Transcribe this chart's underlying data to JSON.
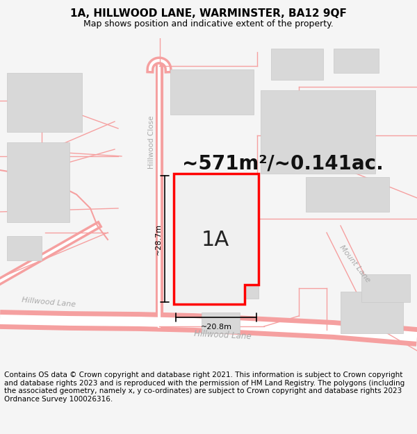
{
  "title_line1": "1A, HILLWOOD LANE, WARMINSTER, BA12 9QF",
  "title_line2": "Map shows position and indicative extent of the property.",
  "area_label": "~571m²/~0.141ac.",
  "plot_label": "1A",
  "width_label": "~20.8m",
  "height_label": "~28.7m",
  "road_label_bottom": "Hillwood Lane",
  "road_label_left": "Hillwood Lane",
  "road_label_close": "Hillwood Close",
  "road_label_mount": "Mount Lane",
  "footer_text": "Contains OS data © Crown copyright and database right 2021. This information is subject to Crown copyright and database rights 2023 and is reproduced with the permission of HM Land Registry. The polygons (including the associated geometry, namely x, y co-ordinates) are subject to Crown copyright and database rights 2023 Ordnance Survey 100026316.",
  "bg_color": "#f5f5f5",
  "map_bg": "#ffffff",
  "plot_fill": "#f0f0f0",
  "plot_border": "#ff0000",
  "road_line_color": "#f5a0a0",
  "road_fill_color": "#ffffff",
  "building_fill": "#d8d8d8",
  "building_edge": "#c8c8c8",
  "title_fontsize": 11,
  "subtitle_fontsize": 9,
  "area_fontsize": 20,
  "plot_label_fontsize": 22,
  "footer_fontsize": 7.5,
  "dim_line_lw": 1.2,
  "road_lw": 10,
  "plot_lw": 2.5
}
